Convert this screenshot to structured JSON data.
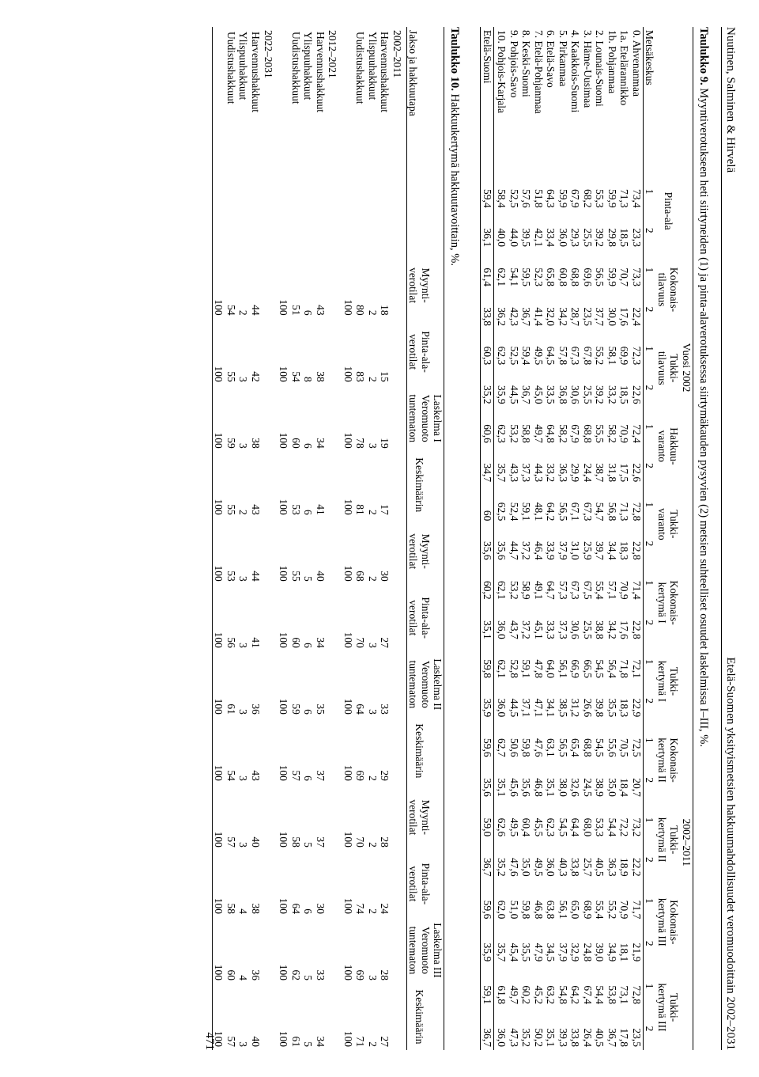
{
  "header": {
    "left": "Nuutinen, Salminen & Hirvelä",
    "right": "Etelä-Suomen yksityismetsien hakkuumahdollisuudet veromuodoittain 2002–2031"
  },
  "page_number": "471",
  "table9": {
    "caption_bold": "Taulukko 9.",
    "caption_rest": " Myyntiverotukseen heti siirtyneiden (1) ja pinta-alaverotuksessa siirtymäkauden pysyvien (2) metsien suhteelliset osuudet laskelmissa I–III, %.",
    "col_left": "Metsäkeskus",
    "year_groups": [
      "Vuosi 2002",
      "2002–2011"
    ],
    "pair_headers": [
      "Pinta-ala",
      "Kokonais-\ntilavuus",
      "Tukki-\ntilavuus",
      "Hakkuu-\nvaranto",
      "Tukki-\nvaranto",
      "Kokonais-\nkertymä I",
      "Tukki-\nkertymä I",
      "Kokonais-\nkertymä II",
      "Tukki-\nkertymä II",
      "Kokonais-\nkertymä III",
      "Tukki-\nkertymä III"
    ],
    "sub": [
      "1",
      "2"
    ],
    "rows": [
      [
        "0.",
        "Ahvenanmaa",
        [
          "73,4",
          "23,3",
          "73,3",
          "22,4",
          "72,3",
          "22,6",
          "72,4",
          "22,6",
          "72,8",
          "22,8",
          "71,4",
          "22,8",
          "72,1",
          "22,9",
          "72,5",
          "20,7",
          "73,2",
          "22,2",
          "71,7",
          "21,9",
          "72,8",
          "23,5"
        ]
      ],
      [
        "1a.",
        "Etelärannikko",
        [
          "71,3",
          "18,5",
          "70,7",
          "17,6",
          "69,9",
          "18,5",
          "70,9",
          "17,5",
          "71,3",
          "18,3",
          "70,9",
          "17,6",
          "71,8",
          "18,3",
          "70,5",
          "18,4",
          "72,2",
          "18,9",
          "70,9",
          "18,1",
          "73,1",
          "17,8"
        ]
      ],
      [
        "1b.",
        "Pohjanmaa",
        [
          "59,9",
          "29,8",
          "59,9",
          "30,0",
          "58,1",
          "33,2",
          "58,2",
          "31,8",
          "56,8",
          "34,4",
          "57,1",
          "34,2",
          "56,4",
          "35,5",
          "55,6",
          "35,0",
          "54,4",
          "36,3",
          "55,2",
          "34,9",
          "53,8",
          "36,7"
        ]
      ],
      [
        "2.",
        "Lounais-Suomi",
        [
          "55,3",
          "39,2",
          "56,5",
          "37,7",
          "55,2",
          "39,2",
          "55,5",
          "38,7",
          "54,7",
          "39,7",
          "55,4",
          "38,8",
          "54,5",
          "39,8",
          "54,5",
          "38,9",
          "53,3",
          "40,5",
          "55,4",
          "39,0",
          "54,4",
          "40,5"
        ]
      ],
      [
        "3.",
        "Häme-Uusimaa",
        [
          "68,2",
          "25,5",
          "69,6",
          "23,5",
          "67,8",
          "25,5",
          "68,8",
          "24,4",
          "67,3",
          "25,9",
          "67,5",
          "25,5",
          "66,5",
          "26,6",
          "68,8",
          "24,5",
          "68,0",
          "25,7",
          "68,9",
          "24,8",
          "67,4",
          "26,4"
        ]
      ],
      [
        "4.",
        "Kaakkois-Suomi",
        [
          "67,9",
          "29,3",
          "68,8",
          "28,7",
          "67,3",
          "30,6",
          "67,9",
          "29,9",
          "67,1",
          "31,0",
          "67,3",
          "30,6",
          "66,9",
          "31,2",
          "65,4",
          "32,6",
          "64,4",
          "33,8",
          "65,0",
          "32,9",
          "64,2",
          "33,8"
        ]
      ],
      [
        "5.",
        "Pirkanmaa",
        [
          "59,9",
          "36,0",
          "60,8",
          "34,2",
          "57,8",
          "36,8",
          "58,2",
          "36,3",
          "56,5",
          "37,9",
          "57,3",
          "37,3",
          "56,1",
          "38,5",
          "56,5",
          "38,0",
          "54,5",
          "40,3",
          "56,1",
          "37,9",
          "54,8",
          "39,3"
        ]
      ],
      [
        "6.",
        "Etelä-Savo",
        [
          "64,3",
          "33,4",
          "65,8",
          "32,0",
          "64,5",
          "33,5",
          "64,8",
          "33,2",
          "64,2",
          "33,9",
          "64,7",
          "33,3",
          "64,0",
          "34,1",
          "63,1",
          "35,1",
          "62,3",
          "36,0",
          "63,8",
          "34,5",
          "63,2",
          "35,1"
        ]
      ],
      [
        "7.",
        "Etelä-Pohjanmaa",
        [
          "51,8",
          "42,1",
          "52,3",
          "41,4",
          "49,5",
          "45,0",
          "49,7",
          "44,3",
          "48,1",
          "46,4",
          "49,1",
          "45,1",
          "47,8",
          "47,1",
          "47,6",
          "46,8",
          "45,5",
          "49,5",
          "46,8",
          "47,9",
          "45,2",
          "50,2"
        ]
      ],
      [
        "8.",
        "Keski-Suomi",
        [
          "57,6",
          "39,5",
          "59,5",
          "36,7",
          "59,4",
          "36,7",
          "58,8",
          "37,3",
          "59,1",
          "37,2",
          "58,9",
          "37,2",
          "59,1",
          "37,1",
          "59,8",
          "35,6",
          "60,4",
          "35,0",
          "59,8",
          "35,5",
          "60,2",
          "35,2"
        ]
      ],
      [
        "9.",
        "Pohjois-Savo",
        [
          "52,5",
          "44,0",
          "54,1",
          "42,3",
          "52,5",
          "44,5",
          "53,2",
          "43,3",
          "52,4",
          "44,7",
          "53,2",
          "43,7",
          "52,8",
          "44,5",
          "50,6",
          "45,6",
          "49,5",
          "47,6",
          "51,0",
          "45,4",
          "49,7",
          "47,3"
        ]
      ],
      [
        "10.",
        "Pohjois-Karjala",
        [
          "58,4",
          "40,0",
          "62,1",
          "36,2",
          "62,3",
          "35,9",
          "62,3",
          "35,7",
          "62,5",
          "35,6",
          "62,1",
          "36,0",
          "62,1",
          "36,0",
          "62,7",
          "35,1",
          "62,6",
          "35,2",
          "62,0",
          "35,7",
          "61,8",
          "36,0"
        ]
      ]
    ],
    "total_label": "Etelä-Suomi",
    "total": [
      "59,4",
      "36,1",
      "61,4",
      "33,8",
      "60,3",
      "35,2",
      "60,6",
      "34,7",
      "60",
      "35,6",
      "60,2",
      "35,1",
      "59,8",
      "35,9",
      "59,6",
      "35,6",
      "59,0",
      "36,7",
      "59,6",
      "35,9",
      "59,1",
      "36,7"
    ]
  },
  "table10": {
    "caption_bold": "Taulukko 10.",
    "caption_rest": " Hakkuukertymä hakkuutavoittain, %.",
    "col_left": "Jakso ja hakkuutapa",
    "groups": [
      "Laskelma I",
      "Laskelma II",
      "Laskelma III"
    ],
    "subcols": [
      "Myynti-\nverotilat",
      "Pinta-ala-\nverotilat",
      "Veromuoto\ntuntematon",
      "Keskimäärin"
    ],
    "periods": [
      {
        "title": "2002–2011",
        "rows": [
          [
            "Harvennushakkuut",
            [
              "18",
              "15",
              "19",
              "17",
              "30",
              "27",
              "33",
              "29",
              "28",
              "24",
              "28",
              "27"
            ]
          ],
          [
            "Ylispuuhakkuut",
            [
              "2",
              "2",
              "3",
              "2",
              "2",
              "3",
              "3",
              "2",
              "2",
              "2",
              "3",
              "2"
            ]
          ],
          [
            "Uudistushakkuut",
            [
              "80",
              "83",
              "78",
              "81",
              "68",
              "70",
              "64",
              "69",
              "70",
              "74",
              "69",
              "71"
            ]
          ],
          [
            "",
            [
              "100",
              "100",
              "100",
              "100",
              "100",
              "100",
              "100",
              "100",
              "100",
              "100",
              "100",
              "100"
            ]
          ]
        ]
      },
      {
        "title": "2012–2021",
        "rows": [
          [
            "Harvennushakkuut",
            [
              "43",
              "38",
              "34",
              "41",
              "40",
              "34",
              "35",
              "37",
              "37",
              "30",
              "33",
              "34"
            ]
          ],
          [
            "Ylispuuhakkuut",
            [
              "6",
              "8",
              "6",
              "6",
              "5",
              "6",
              "6",
              "6",
              "5",
              "6",
              "5",
              "5"
            ]
          ],
          [
            "Uudistushakkuut",
            [
              "51",
              "54",
              "60",
              "53",
              "55",
              "60",
              "59",
              "57",
              "58",
              "64",
              "62",
              "61"
            ]
          ],
          [
            "",
            [
              "100",
              "100",
              "100",
              "100",
              "100",
              "100",
              "100",
              "100",
              "100",
              "100",
              "100",
              "100"
            ]
          ]
        ]
      },
      {
        "title": "2022–2031",
        "rows": [
          [
            "Harvennushakkuut",
            [
              "44",
              "42",
              "38",
              "43",
              "44",
              "41",
              "36",
              "43",
              "40",
              "38",
              "36",
              "40"
            ]
          ],
          [
            "Ylispuuhakkuut",
            [
              "2",
              "3",
              "3",
              "2",
              "3",
              "3",
              "3",
              "3",
              "3",
              "4",
              "4",
              "3"
            ]
          ],
          [
            "Uudistushakkuut",
            [
              "54",
              "55",
              "59",
              "55",
              "53",
              "56",
              "61",
              "54",
              "57",
              "58",
              "60",
              "57"
            ]
          ],
          [
            "",
            [
              "100",
              "100",
              "100",
              "100",
              "100",
              "100",
              "100",
              "100",
              "100",
              "100",
              "100",
              "100"
            ]
          ]
        ]
      }
    ]
  }
}
